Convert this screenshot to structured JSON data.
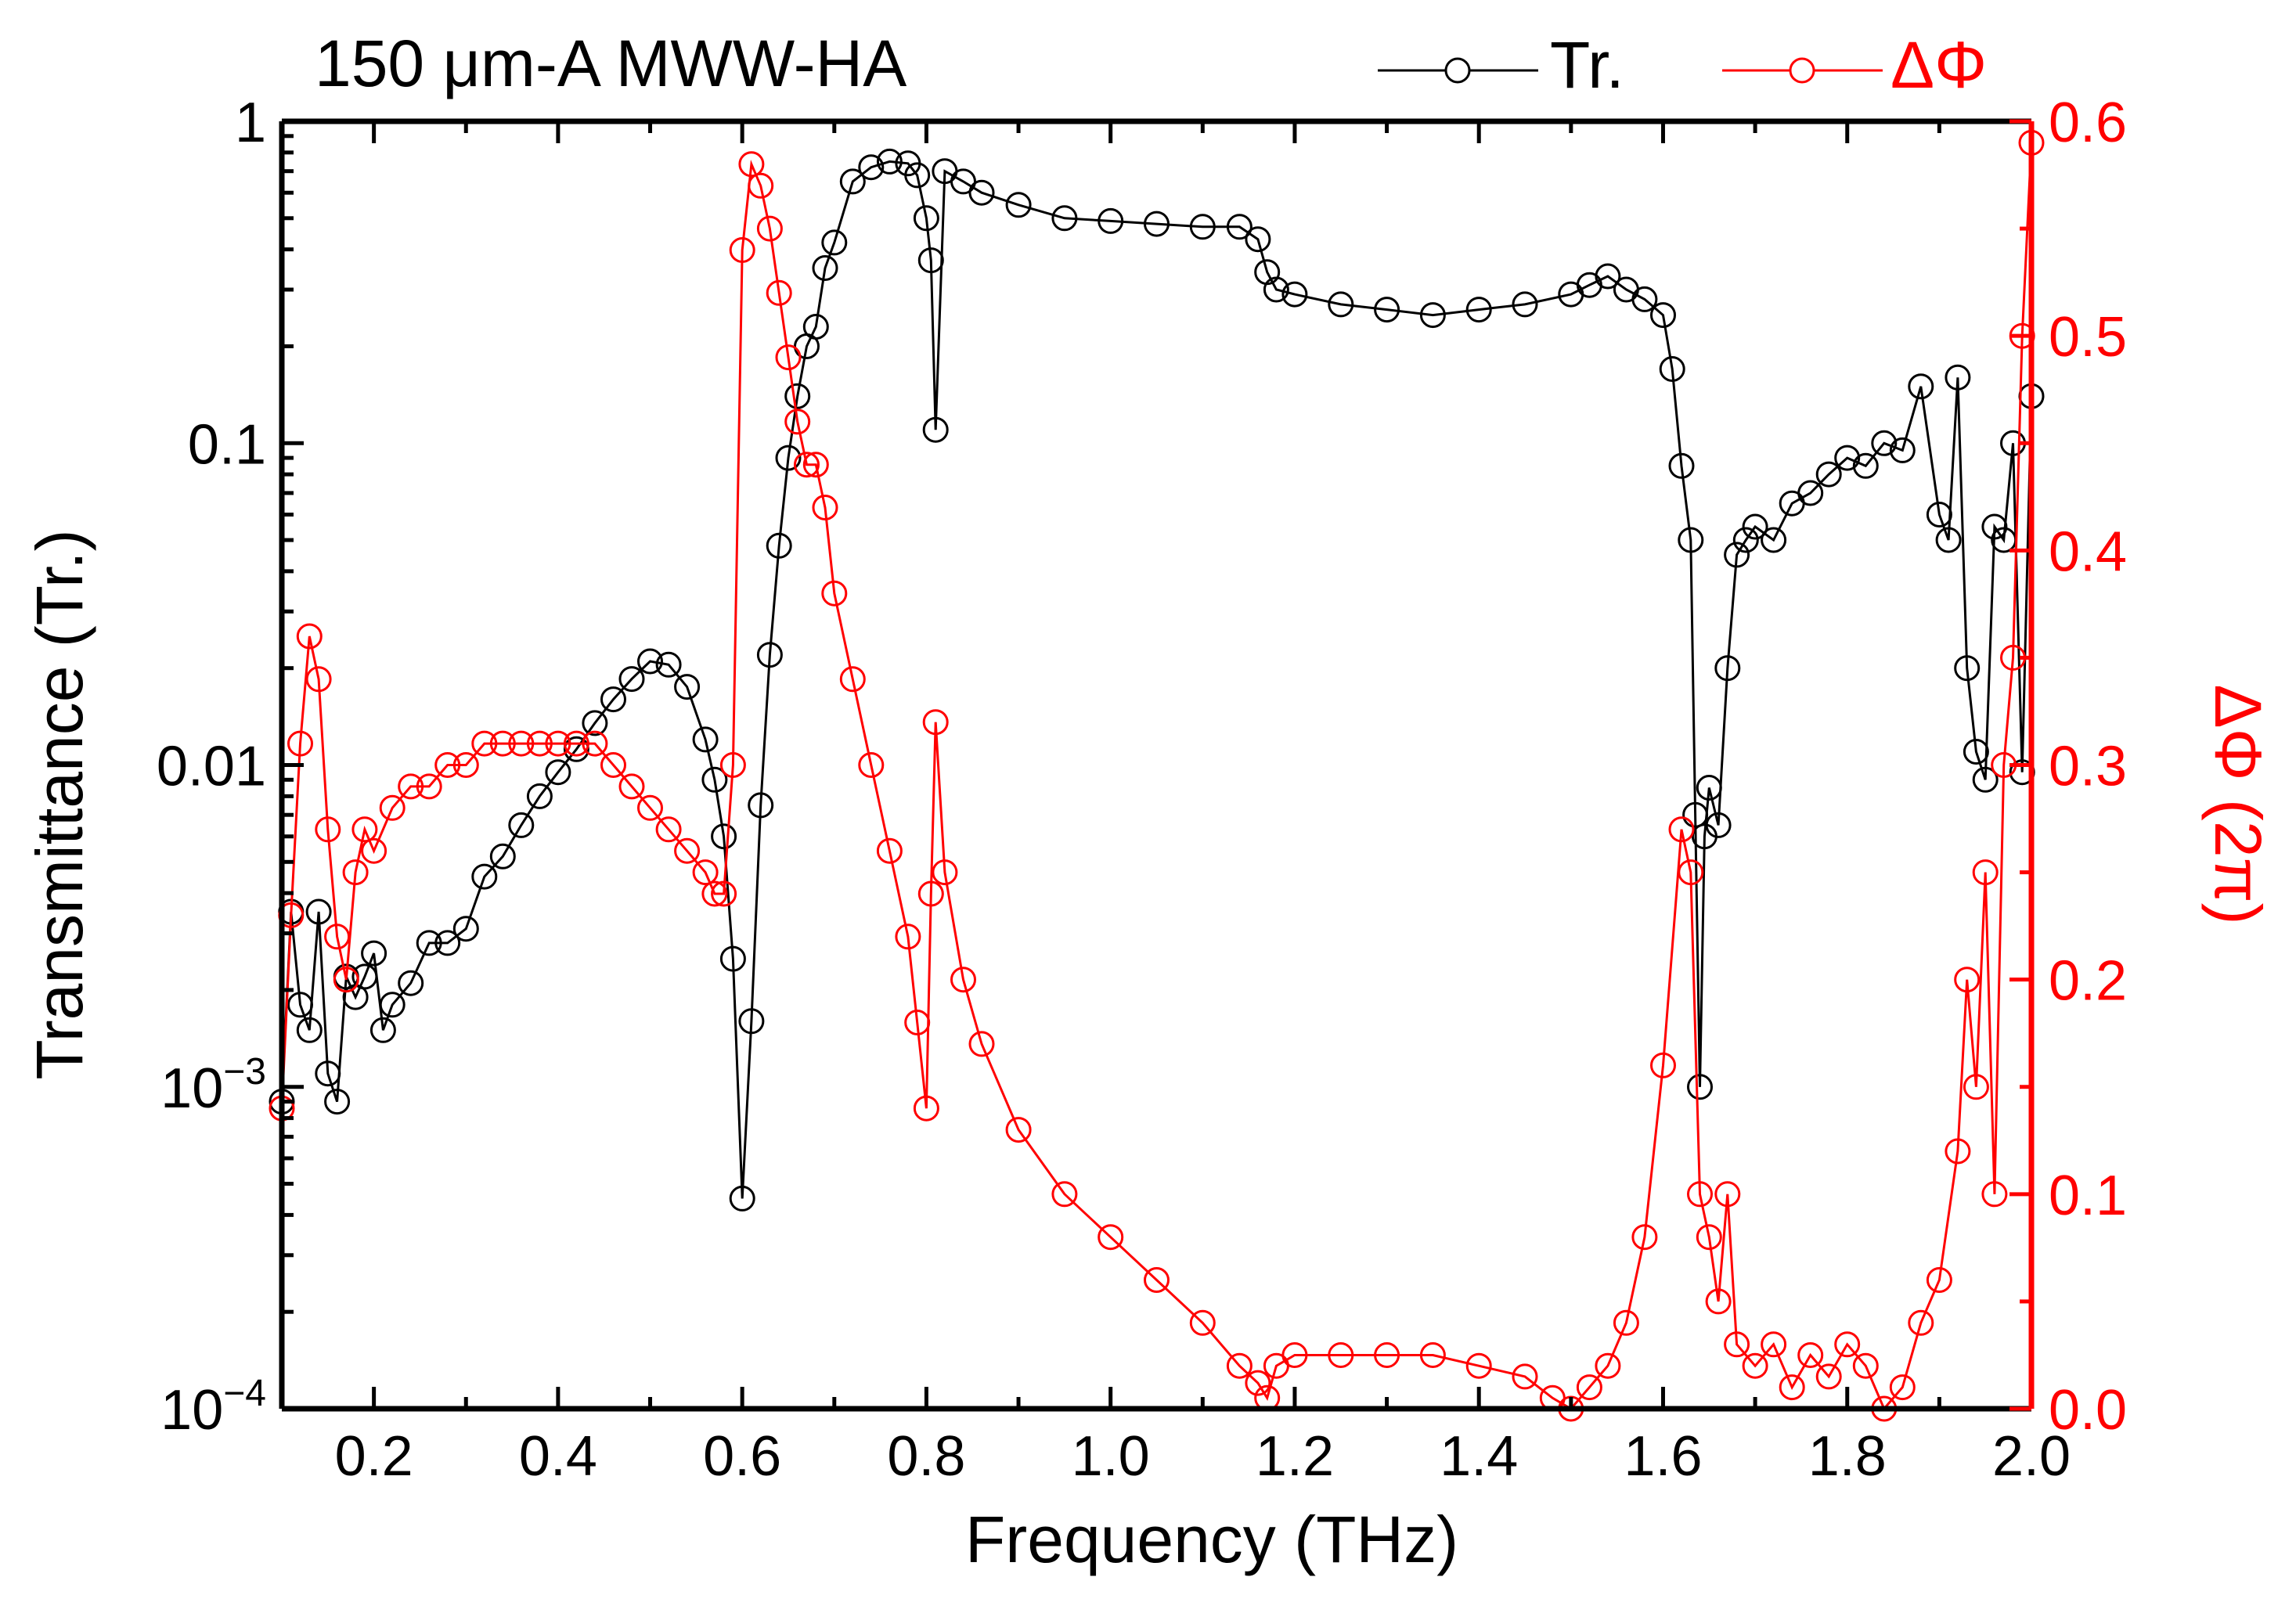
{
  "chart_data": {
    "type": "line",
    "title": "150 μm-A MWW-HA",
    "xlabel": "Frequency (THz)",
    "ylabel_left": "Transmittance (Tr.)",
    "ylabel_right": "ΔΦ (2π)",
    "xlim": [
      0.1,
      2.0
    ],
    "ylim_left": [
      0.0001,
      1
    ],
    "yscale_left": "log",
    "ylim_right": [
      0.0,
      0.6
    ],
    "x_ticks": [
      "0.2",
      "0.4",
      "0.6",
      "0.8",
      "1.0",
      "1.2",
      "1.4",
      "1.6",
      "1.8",
      "2.0"
    ],
    "y_left_ticks": [
      {
        "base": "1",
        "sup": ""
      },
      {
        "base": "0.1",
        "sup": ""
      },
      {
        "base": "0.01",
        "sup": ""
      },
      {
        "base": "10",
        "sup": "−3"
      },
      {
        "base": "10",
        "sup": "−4"
      }
    ],
    "y_right_ticks": [
      "0.0",
      "0.1",
      "0.2",
      "0.3",
      "0.4",
      "0.5",
      "0.6"
    ],
    "legend_position": "top-right",
    "colors": {
      "transmittance": "#000000",
      "phase": "#ff0000"
    },
    "series": [
      {
        "name": "Tr.",
        "axis": "left",
        "color": "#000000",
        "x": [
          0.1,
          0.11,
          0.12,
          0.13,
          0.14,
          0.15,
          0.16,
          0.17,
          0.18,
          0.19,
          0.2,
          0.21,
          0.22,
          0.24,
          0.26,
          0.28,
          0.3,
          0.32,
          0.34,
          0.36,
          0.38,
          0.4,
          0.42,
          0.44,
          0.46,
          0.48,
          0.5,
          0.52,
          0.54,
          0.56,
          0.57,
          0.58,
          0.59,
          0.6,
          0.61,
          0.62,
          0.63,
          0.64,
          0.65,
          0.66,
          0.67,
          0.68,
          0.69,
          0.7,
          0.72,
          0.74,
          0.76,
          0.78,
          0.79,
          0.8,
          0.805,
          0.81,
          0.82,
          0.84,
          0.86,
          0.9,
          0.95,
          1.0,
          1.05,
          1.1,
          1.14,
          1.16,
          1.17,
          1.18,
          1.2,
          1.25,
          1.3,
          1.35,
          1.4,
          1.45,
          1.5,
          1.52,
          1.54,
          1.56,
          1.58,
          1.6,
          1.61,
          1.62,
          1.63,
          1.635,
          1.64,
          1.645,
          1.65,
          1.66,
          1.67,
          1.68,
          1.69,
          1.7,
          1.72,
          1.74,
          1.76,
          1.78,
          1.8,
          1.82,
          1.84,
          1.86,
          1.88,
          1.9,
          1.91,
          1.92,
          1.93,
          1.94,
          1.95,
          1.96,
          1.97,
          1.98,
          1.99,
          2.0
        ],
        "values": [
          0.0009,
          0.0035,
          0.0018,
          0.0015,
          0.0035,
          0.0011,
          0.0009,
          0.0022,
          0.0019,
          0.0022,
          0.0026,
          0.0015,
          0.0018,
          0.0021,
          0.0028,
          0.0028,
          0.0031,
          0.0045,
          0.0052,
          0.0065,
          0.008,
          0.0095,
          0.0112,
          0.0135,
          0.016,
          0.0185,
          0.021,
          0.0205,
          0.0175,
          0.012,
          0.009,
          0.006,
          0.0025,
          0.00045,
          0.0016,
          0.0075,
          0.022,
          0.048,
          0.09,
          0.14,
          0.2,
          0.23,
          0.35,
          0.42,
          0.65,
          0.72,
          0.75,
          0.74,
          0.68,
          0.5,
          0.37,
          0.11,
          0.7,
          0.65,
          0.6,
          0.55,
          0.5,
          0.49,
          0.48,
          0.47,
          0.47,
          0.43,
          0.34,
          0.3,
          0.29,
          0.27,
          0.26,
          0.25,
          0.26,
          0.27,
          0.29,
          0.31,
          0.33,
          0.3,
          0.28,
          0.25,
          0.17,
          0.085,
          0.05,
          0.007,
          0.001,
          0.006,
          0.0085,
          0.0065,
          0.02,
          0.045,
          0.05,
          0.055,
          0.05,
          0.065,
          0.07,
          0.08,
          0.09,
          0.085,
          0.1,
          0.095,
          0.15,
          0.06,
          0.05,
          0.16,
          0.02,
          0.011,
          0.009,
          0.055,
          0.05,
          0.1,
          0.0095,
          0.14
        ]
      },
      {
        "name": "ΔΦ",
        "axis": "right",
        "color": "#ff0000",
        "x": [
          0.1,
          0.11,
          0.12,
          0.13,
          0.14,
          0.15,
          0.16,
          0.17,
          0.18,
          0.19,
          0.2,
          0.22,
          0.24,
          0.26,
          0.28,
          0.3,
          0.32,
          0.34,
          0.36,
          0.38,
          0.4,
          0.42,
          0.44,
          0.46,
          0.48,
          0.5,
          0.52,
          0.54,
          0.56,
          0.57,
          0.58,
          0.59,
          0.6,
          0.61,
          0.62,
          0.63,
          0.64,
          0.65,
          0.66,
          0.67,
          0.68,
          0.69,
          0.7,
          0.72,
          0.74,
          0.76,
          0.78,
          0.79,
          0.8,
          0.805,
          0.81,
          0.82,
          0.84,
          0.86,
          0.9,
          0.95,
          1.0,
          1.05,
          1.1,
          1.14,
          1.16,
          1.17,
          1.18,
          1.2,
          1.25,
          1.3,
          1.35,
          1.4,
          1.45,
          1.48,
          1.5,
          1.52,
          1.54,
          1.56,
          1.58,
          1.6,
          1.62,
          1.63,
          1.64,
          1.65,
          1.66,
          1.67,
          1.68,
          1.7,
          1.72,
          1.74,
          1.76,
          1.78,
          1.8,
          1.82,
          1.84,
          1.86,
          1.88,
          1.9,
          1.92,
          1.93,
          1.94,
          1.95,
          1.96,
          1.97,
          1.98,
          1.99,
          2.0
        ],
        "values": [
          0.14,
          0.23,
          0.31,
          0.36,
          0.34,
          0.27,
          0.22,
          0.2,
          0.25,
          0.27,
          0.26,
          0.28,
          0.29,
          0.29,
          0.3,
          0.3,
          0.31,
          0.31,
          0.31,
          0.31,
          0.31,
          0.31,
          0.31,
          0.3,
          0.29,
          0.28,
          0.27,
          0.26,
          0.25,
          0.24,
          0.24,
          0.3,
          0.54,
          0.58,
          0.57,
          0.55,
          0.52,
          0.49,
          0.46,
          0.44,
          0.44,
          0.42,
          0.38,
          0.34,
          0.3,
          0.26,
          0.22,
          0.18,
          0.14,
          0.24,
          0.32,
          0.25,
          0.2,
          0.17,
          0.13,
          0.1,
          0.08,
          0.06,
          0.04,
          0.02,
          0.012,
          0.005,
          0.02,
          0.025,
          0.025,
          0.025,
          0.025,
          0.02,
          0.015,
          0.005,
          0.0,
          0.01,
          0.02,
          0.04,
          0.08,
          0.16,
          0.27,
          0.25,
          0.1,
          0.08,
          0.05,
          0.1,
          0.03,
          0.02,
          0.03,
          0.01,
          0.025,
          0.015,
          0.03,
          0.02,
          0.0,
          0.01,
          0.04,
          0.06,
          0.12,
          0.2,
          0.15,
          0.25,
          0.1,
          0.3,
          0.35,
          0.5,
          0.59
        ]
      }
    ]
  }
}
